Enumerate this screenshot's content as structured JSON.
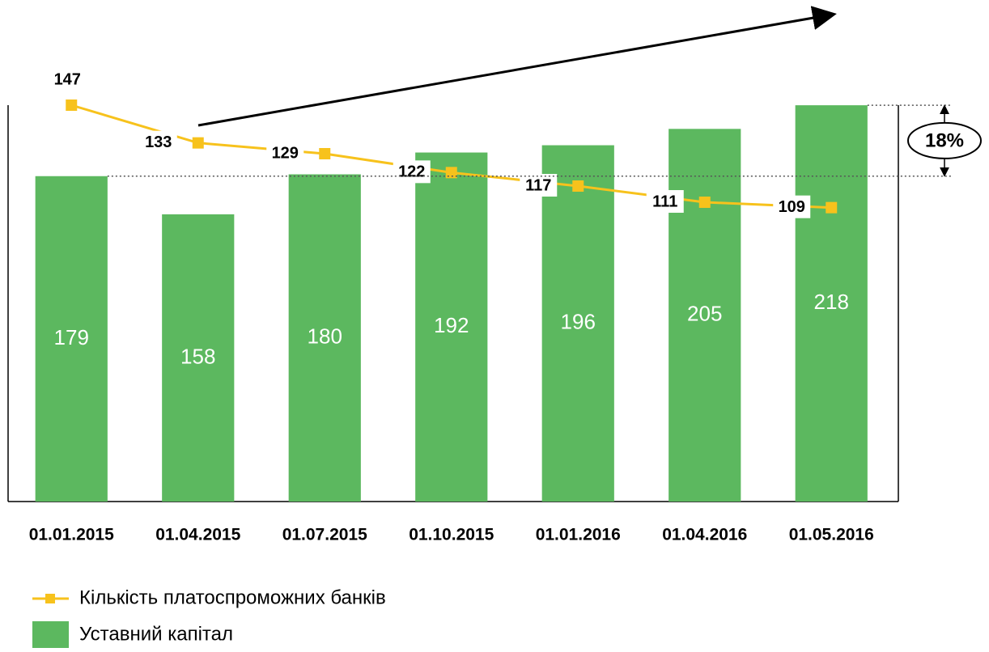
{
  "chart_data": {
    "type": "bar",
    "categories": [
      "01.01.2015",
      "01.04.2015",
      "01.07.2015",
      "01.10.2015",
      "01.01.2016",
      "01.04.2016",
      "01.05.2016"
    ],
    "series": [
      {
        "name": "Кількість платоспроможних банків",
        "type": "line",
        "axis": "y2",
        "color": "#f7c21c",
        "values": [
          147,
          133,
          129,
          122,
          117,
          111,
          109
        ]
      },
      {
        "name": "Уставний капітал",
        "type": "bar",
        "color": "#5cb85f",
        "values": [
          179,
          158,
          180,
          192,
          196,
          205,
          218
        ]
      }
    ],
    "ylim": [
      0,
      267
    ],
    "y2lim": [
      0,
      180
    ],
    "annotation": "18%"
  }
}
